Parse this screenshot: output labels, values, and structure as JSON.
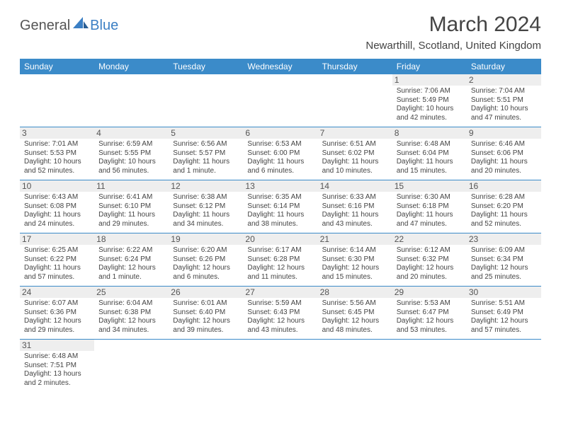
{
  "logo": {
    "text1": "General",
    "text2": "Blue"
  },
  "title": "March 2024",
  "subtitle": "Newarthill, Scotland, United Kingdom",
  "colors": {
    "header_bg": "#3b8bc9",
    "header_fg": "#ffffff",
    "border": "#3b8bc9",
    "daynum_bg": "#eeeeee",
    "text": "#444444",
    "logo_blue": "#3b7fc4"
  },
  "columns": [
    "Sunday",
    "Monday",
    "Tuesday",
    "Wednesday",
    "Thursday",
    "Friday",
    "Saturday"
  ],
  "weeks": [
    [
      null,
      null,
      null,
      null,
      null,
      {
        "n": "1",
        "sr": "Sunrise: 7:06 AM",
        "ss": "Sunset: 5:49 PM",
        "d1": "Daylight: 10 hours",
        "d2": "and 42 minutes."
      },
      {
        "n": "2",
        "sr": "Sunrise: 7:04 AM",
        "ss": "Sunset: 5:51 PM",
        "d1": "Daylight: 10 hours",
        "d2": "and 47 minutes."
      }
    ],
    [
      {
        "n": "3",
        "sr": "Sunrise: 7:01 AM",
        "ss": "Sunset: 5:53 PM",
        "d1": "Daylight: 10 hours",
        "d2": "and 52 minutes."
      },
      {
        "n": "4",
        "sr": "Sunrise: 6:59 AM",
        "ss": "Sunset: 5:55 PM",
        "d1": "Daylight: 10 hours",
        "d2": "and 56 minutes."
      },
      {
        "n": "5",
        "sr": "Sunrise: 6:56 AM",
        "ss": "Sunset: 5:57 PM",
        "d1": "Daylight: 11 hours",
        "d2": "and 1 minute."
      },
      {
        "n": "6",
        "sr": "Sunrise: 6:53 AM",
        "ss": "Sunset: 6:00 PM",
        "d1": "Daylight: 11 hours",
        "d2": "and 6 minutes."
      },
      {
        "n": "7",
        "sr": "Sunrise: 6:51 AM",
        "ss": "Sunset: 6:02 PM",
        "d1": "Daylight: 11 hours",
        "d2": "and 10 minutes."
      },
      {
        "n": "8",
        "sr": "Sunrise: 6:48 AM",
        "ss": "Sunset: 6:04 PM",
        "d1": "Daylight: 11 hours",
        "d2": "and 15 minutes."
      },
      {
        "n": "9",
        "sr": "Sunrise: 6:46 AM",
        "ss": "Sunset: 6:06 PM",
        "d1": "Daylight: 11 hours",
        "d2": "and 20 minutes."
      }
    ],
    [
      {
        "n": "10",
        "sr": "Sunrise: 6:43 AM",
        "ss": "Sunset: 6:08 PM",
        "d1": "Daylight: 11 hours",
        "d2": "and 24 minutes."
      },
      {
        "n": "11",
        "sr": "Sunrise: 6:41 AM",
        "ss": "Sunset: 6:10 PM",
        "d1": "Daylight: 11 hours",
        "d2": "and 29 minutes."
      },
      {
        "n": "12",
        "sr": "Sunrise: 6:38 AM",
        "ss": "Sunset: 6:12 PM",
        "d1": "Daylight: 11 hours",
        "d2": "and 34 minutes."
      },
      {
        "n": "13",
        "sr": "Sunrise: 6:35 AM",
        "ss": "Sunset: 6:14 PM",
        "d1": "Daylight: 11 hours",
        "d2": "and 38 minutes."
      },
      {
        "n": "14",
        "sr": "Sunrise: 6:33 AM",
        "ss": "Sunset: 6:16 PM",
        "d1": "Daylight: 11 hours",
        "d2": "and 43 minutes."
      },
      {
        "n": "15",
        "sr": "Sunrise: 6:30 AM",
        "ss": "Sunset: 6:18 PM",
        "d1": "Daylight: 11 hours",
        "d2": "and 47 minutes."
      },
      {
        "n": "16",
        "sr": "Sunrise: 6:28 AM",
        "ss": "Sunset: 6:20 PM",
        "d1": "Daylight: 11 hours",
        "d2": "and 52 minutes."
      }
    ],
    [
      {
        "n": "17",
        "sr": "Sunrise: 6:25 AM",
        "ss": "Sunset: 6:22 PM",
        "d1": "Daylight: 11 hours",
        "d2": "and 57 minutes."
      },
      {
        "n": "18",
        "sr": "Sunrise: 6:22 AM",
        "ss": "Sunset: 6:24 PM",
        "d1": "Daylight: 12 hours",
        "d2": "and 1 minute."
      },
      {
        "n": "19",
        "sr": "Sunrise: 6:20 AM",
        "ss": "Sunset: 6:26 PM",
        "d1": "Daylight: 12 hours",
        "d2": "and 6 minutes."
      },
      {
        "n": "20",
        "sr": "Sunrise: 6:17 AM",
        "ss": "Sunset: 6:28 PM",
        "d1": "Daylight: 12 hours",
        "d2": "and 11 minutes."
      },
      {
        "n": "21",
        "sr": "Sunrise: 6:14 AM",
        "ss": "Sunset: 6:30 PM",
        "d1": "Daylight: 12 hours",
        "d2": "and 15 minutes."
      },
      {
        "n": "22",
        "sr": "Sunrise: 6:12 AM",
        "ss": "Sunset: 6:32 PM",
        "d1": "Daylight: 12 hours",
        "d2": "and 20 minutes."
      },
      {
        "n": "23",
        "sr": "Sunrise: 6:09 AM",
        "ss": "Sunset: 6:34 PM",
        "d1": "Daylight: 12 hours",
        "d2": "and 25 minutes."
      }
    ],
    [
      {
        "n": "24",
        "sr": "Sunrise: 6:07 AM",
        "ss": "Sunset: 6:36 PM",
        "d1": "Daylight: 12 hours",
        "d2": "and 29 minutes."
      },
      {
        "n": "25",
        "sr": "Sunrise: 6:04 AM",
        "ss": "Sunset: 6:38 PM",
        "d1": "Daylight: 12 hours",
        "d2": "and 34 minutes."
      },
      {
        "n": "26",
        "sr": "Sunrise: 6:01 AM",
        "ss": "Sunset: 6:40 PM",
        "d1": "Daylight: 12 hours",
        "d2": "and 39 minutes."
      },
      {
        "n": "27",
        "sr": "Sunrise: 5:59 AM",
        "ss": "Sunset: 6:43 PM",
        "d1": "Daylight: 12 hours",
        "d2": "and 43 minutes."
      },
      {
        "n": "28",
        "sr": "Sunrise: 5:56 AM",
        "ss": "Sunset: 6:45 PM",
        "d1": "Daylight: 12 hours",
        "d2": "and 48 minutes."
      },
      {
        "n": "29",
        "sr": "Sunrise: 5:53 AM",
        "ss": "Sunset: 6:47 PM",
        "d1": "Daylight: 12 hours",
        "d2": "and 53 minutes."
      },
      {
        "n": "30",
        "sr": "Sunrise: 5:51 AM",
        "ss": "Sunset: 6:49 PM",
        "d1": "Daylight: 12 hours",
        "d2": "and 57 minutes."
      }
    ],
    [
      {
        "n": "31",
        "sr": "Sunrise: 6:48 AM",
        "ss": "Sunset: 7:51 PM",
        "d1": "Daylight: 13 hours",
        "d2": "and 2 minutes."
      },
      null,
      null,
      null,
      null,
      null,
      null
    ]
  ]
}
